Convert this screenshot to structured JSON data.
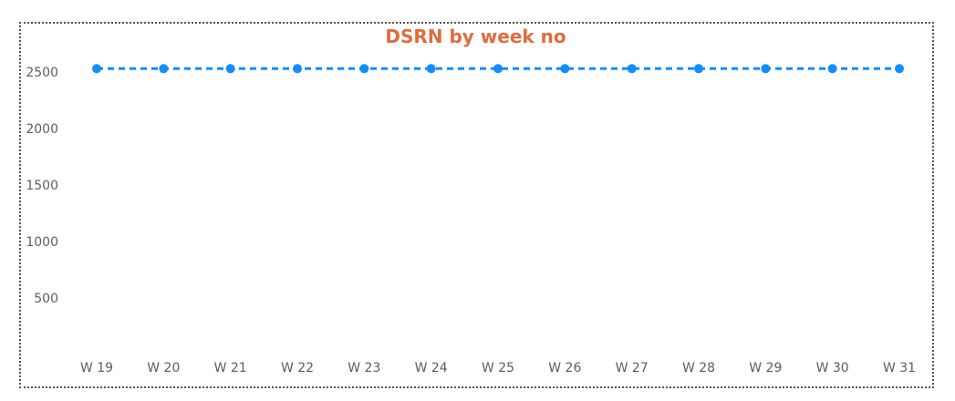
{
  "chart_data": {
    "type": "line",
    "title": "DSRN by week no",
    "xlabel": "",
    "ylabel": "",
    "categories": [
      "W 19",
      "W 20",
      "W 21",
      "W 22",
      "W 23",
      "W 24",
      "W 25",
      "W 26",
      "W 27",
      "W 28",
      "W 29",
      "W 30",
      "W 31"
    ],
    "series": [
      {
        "values": [
          2530,
          2530,
          2530,
          2530,
          2530,
          2530,
          2530,
          2530,
          2530,
          2530,
          2530,
          2530,
          2530
        ],
        "color": "#118dff",
        "line_style": "dashed",
        "markers": true
      }
    ],
    "yticks": [
      500,
      1000,
      1500,
      2000,
      2500
    ],
    "ylim": [
      0,
      2650
    ],
    "grid": false,
    "legend": "none",
    "title_color": "#e06c3d",
    "tick_color": "#605e5c"
  }
}
